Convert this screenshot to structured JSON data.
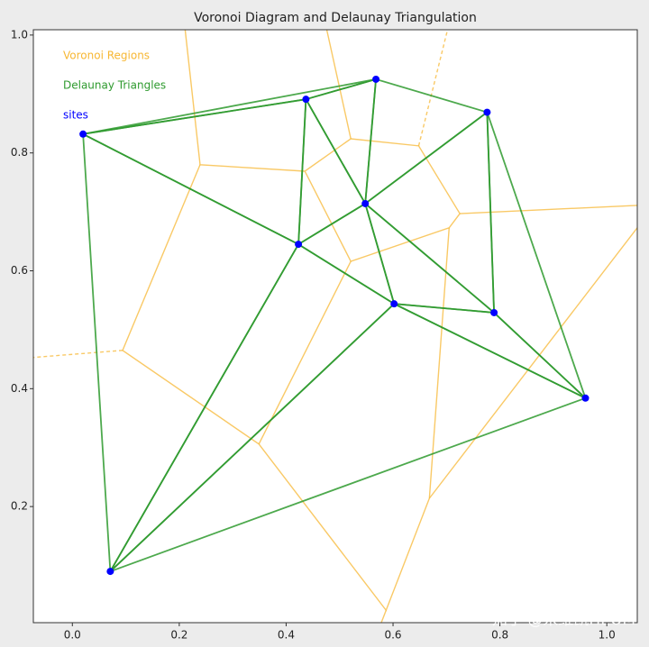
{
  "chart_data": {
    "type": "voronoi-delaunay",
    "title": "Voronoi Diagram and Delaunay Triangulation",
    "xlim": [
      -0.073,
      1.057
    ],
    "ylim": [
      0.003,
      1.009
    ],
    "xticks": [
      {
        "value": 0,
        "label": "0.0"
      },
      0.2,
      0.4,
      0.6,
      0.8,
      {
        "value": 1,
        "label": "1.0"
      }
    ],
    "yticks": [
      0.2,
      0.4,
      0.6,
      0.8,
      {
        "value": 1,
        "label": "1.0"
      }
    ],
    "sites": {
      "name": "sites",
      "color": "#0000ff",
      "x": [
        0.02,
        0.071,
        0.423,
        0.437,
        0.568,
        0.548,
        0.602,
        0.776,
        0.789,
        0.96
      ],
      "y": [
        0.832,
        0.09,
        0.645,
        0.891,
        0.925,
        0.714,
        0.544,
        0.869,
        0.529,
        0.384
      ]
    },
    "delaunay": {
      "name": "Delaunay Triangles",
      "color": "#2e9a2e",
      "triangles": [
        [
          0,
          3,
          4
        ],
        [
          0,
          1,
          2
        ],
        [
          0,
          2,
          3
        ],
        [
          3,
          4,
          5
        ],
        [
          2,
          3,
          5
        ],
        [
          4,
          5,
          7
        ],
        [
          5,
          7,
          8
        ],
        [
          5,
          6,
          8
        ],
        [
          6,
          8,
          9
        ],
        [
          7,
          8,
          9
        ],
        [
          2,
          5,
          6
        ],
        [
          1,
          2,
          6
        ],
        [
          1,
          6,
          9
        ]
      ]
    },
    "voronoi": {
      "name": "Voronoi Regions",
      "color": "#f7b733",
      "segments": [
        {
          "x": [
            0.211,
            0.239,
            0.435,
            0.521,
            0.648,
            0.725,
            0.705,
            0.521,
            0.435
          ],
          "y": [
            1.009,
            0.78,
            0.769,
            0.824,
            0.812,
            0.697,
            0.673,
            0.616,
            0.769
          ],
          "dashed": false
        },
        {
          "x": [
            0.239,
            0.094,
            0.349,
            0.587,
            0.668,
            0.705
          ],
          "y": [
            0.78,
            0.465,
            0.306,
            0.024,
            0.214,
            0.673
          ],
          "dashed": false
        },
        {
          "x": [
            0.521,
            0.349
          ],
          "y": [
            0.616,
            0.306
          ],
          "dashed": false
        },
        {
          "x": [
            0.521,
            0.476
          ],
          "y": [
            0.824,
            1.009
          ],
          "dashed": false
        },
        {
          "x": [
            0.648,
            0.702
          ],
          "y": [
            0.812,
            1.009
          ],
          "dashed": true
        },
        {
          "x": [
            0.725,
            1.057
          ],
          "y": [
            0.697,
            0.711
          ],
          "dashed": false
        },
        {
          "x": [
            0.094,
            -0.073
          ],
          "y": [
            0.465,
            0.453
          ],
          "dashed": true
        },
        {
          "x": [
            0.668,
            1.057
          ],
          "y": [
            0.214,
            0.673
          ],
          "dashed": false
        },
        {
          "x": [
            0.587,
            0.578
          ],
          "y": [
            0.024,
            0.003
          ],
          "dashed": false
        }
      ]
    },
    "watermark": "知乎 @宋维凯HEOM"
  }
}
